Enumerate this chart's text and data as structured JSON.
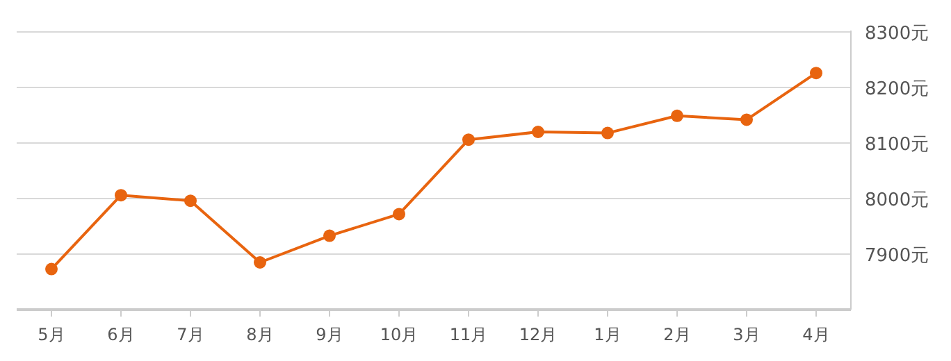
{
  "chart_data": {
    "type": "line",
    "categories": [
      "5月",
      "6月",
      "7月",
      "8月",
      "9月",
      "10月",
      "11月",
      "12月",
      "1月",
      "2月",
      "3月",
      "4月"
    ],
    "series": [
      {
        "color": "#e8640f",
        "values": [
          7873,
          8006,
          7996,
          7885,
          7933,
          7972,
          8106,
          8120,
          8118,
          8149,
          8142,
          8226
        ]
      }
    ],
    "ylim": [
      7800,
      8300
    ],
    "yticks": [
      {
        "value": 7900,
        "label": "7900元"
      },
      {
        "value": 8000,
        "label": "8000元"
      },
      {
        "value": 8100,
        "label": "8100元"
      },
      {
        "value": 8200,
        "label": "8200元"
      },
      {
        "value": 8300,
        "label": "8300元"
      }
    ],
    "grid": "y",
    "marker": "circle",
    "line_style": "solid"
  }
}
